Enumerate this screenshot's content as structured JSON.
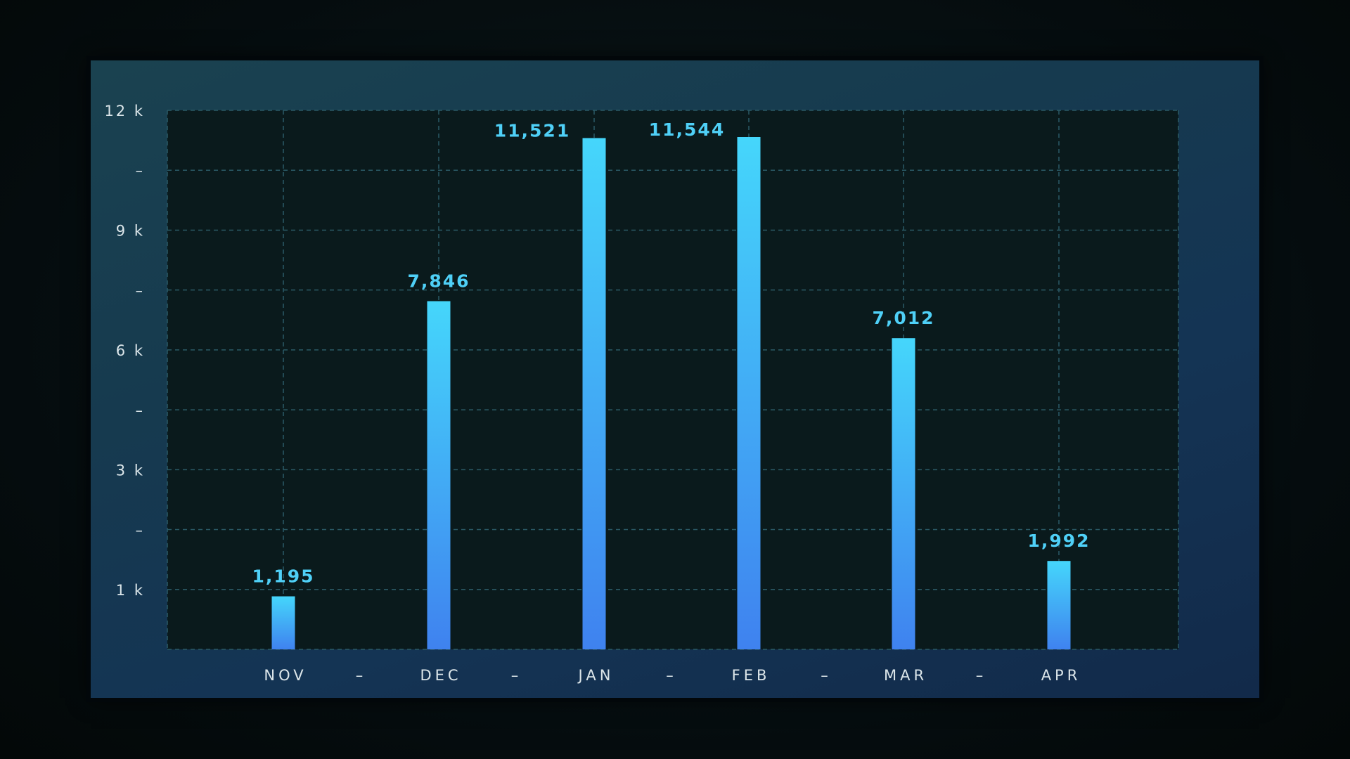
{
  "chart_data": {
    "type": "bar",
    "categories": [
      "NOV",
      "DEC",
      "JAN",
      "FEB",
      "MAR",
      "APR"
    ],
    "values": [
      1195,
      7846,
      11521,
      11544,
      7012,
      1992
    ],
    "value_labels": [
      "1,195",
      "7,846",
      "11,521",
      "11,544",
      "7,012",
      "1,992"
    ],
    "category_separator": "–",
    "y_ticks": [
      {
        "label": "1 k"
      },
      {
        "label": "–"
      },
      {
        "label": "3 k"
      },
      {
        "label": "–"
      },
      {
        "label": "6 k"
      },
      {
        "label": "–"
      },
      {
        "label": "9 k"
      },
      {
        "label": "–"
      },
      {
        "label": "12 k"
      }
    ],
    "grid": true,
    "colors": {
      "bar_top": "#45d6fb",
      "bar_bottom": "#3f82ef",
      "value_label": "#4fd0f7",
      "plot_background": "#0a1a1c",
      "grid_line": "#2b5a66"
    }
  }
}
